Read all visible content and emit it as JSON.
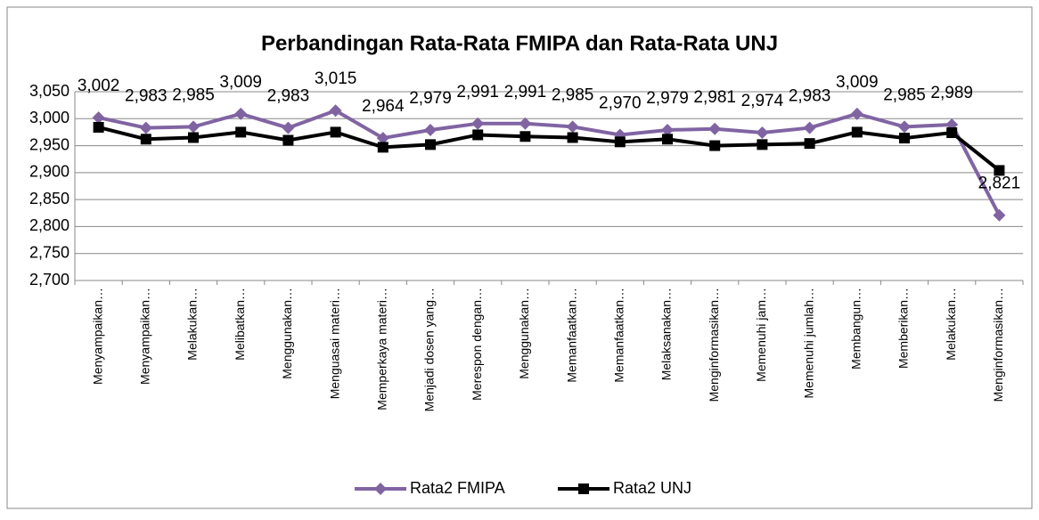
{
  "chart_data": {
    "type": "line",
    "title": "Perbandingan Rata-Rata FMIPA dan Rata-Rata UNJ",
    "categories": [
      "Menyampaikan…",
      "Menyampaikan…",
      "Melakukan…",
      "Melibatkan…",
      "Menggunakan…",
      "Menguasai materi…",
      "Memperkaya materi…",
      "Menjadi dosen yang…",
      "Merespon dengan…",
      "Menggunakan…",
      "Memanfaatkan…",
      "Memanfaatkan…",
      "Melaksanakan…",
      "Menginformasikan…",
      "Memenuhi jam…",
      "Memenuhi jumlah…",
      "Membangun…",
      "Memberikan…",
      "Melakukan…",
      "Menginformasikan…"
    ],
    "series": [
      {
        "name": "Rata2 FMIPA",
        "color": "#8064a2",
        "marker": "diamond",
        "values": [
          3.002,
          2.983,
          2.985,
          3.009,
          2.983,
          3.015,
          2.964,
          2.979,
          2.991,
          2.991,
          2.985,
          2.97,
          2.979,
          2.981,
          2.974,
          2.983,
          3.009,
          2.985,
          2.989,
          2.821
        ],
        "value_labels": [
          "3,002",
          "2,983",
          "2,985",
          "3,009",
          "2,983",
          "3,015",
          "2,964",
          "2,979",
          "2,991",
          "2,991",
          "2,985",
          "2,970",
          "2,979",
          "2,981",
          "2,974",
          "2,983",
          "3,009",
          "2,985",
          "2,989",
          "2,821"
        ]
      },
      {
        "name": "Rata2 UNJ",
        "color": "#000000",
        "marker": "square",
        "values": [
          2.984,
          2.962,
          2.965,
          2.975,
          2.96,
          2.975,
          2.947,
          2.952,
          2.97,
          2.967,
          2.965,
          2.957,
          2.962,
          2.95,
          2.952,
          2.954,
          2.975,
          2.964,
          2.974,
          2.904
        ]
      }
    ],
    "ylim": [
      2.7,
      3.05
    ],
    "yticks": [
      {
        "value": 2.7,
        "label": "2,700"
      },
      {
        "value": 2.75,
        "label": "2,750"
      },
      {
        "value": 2.8,
        "label": "2,800"
      },
      {
        "value": 2.85,
        "label": "2,850"
      },
      {
        "value": 2.9,
        "label": "2,900"
      },
      {
        "value": 2.95,
        "label": "2,950"
      },
      {
        "value": 3.0,
        "label": "3,000"
      },
      {
        "value": 3.05,
        "label": "3,050"
      }
    ],
    "grid": true,
    "legend": "bottom"
  }
}
